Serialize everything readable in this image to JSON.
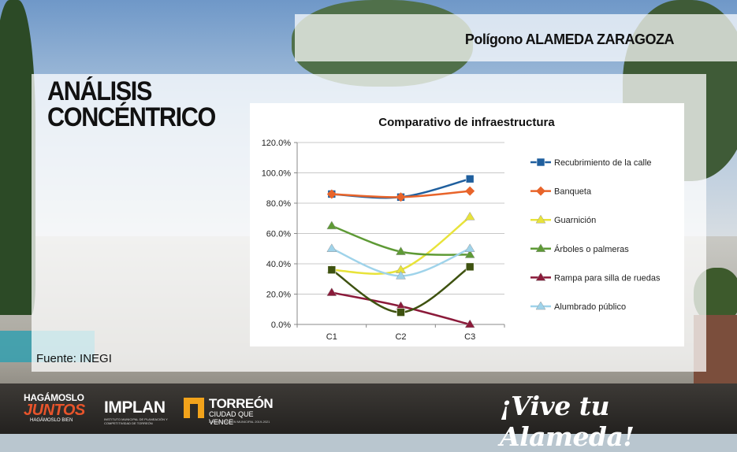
{
  "header": {
    "polygon_title": "Polígono ALAMEDA ZARAGOZA"
  },
  "heading": {
    "line1": "ANÁLISIS",
    "line2": "CONCÉNTRICO"
  },
  "source": "Fuente: INEGI",
  "footer": {
    "hagamoslo_top": "HAGÁMOSLO",
    "hagamoslo_main": "JUNTOS",
    "hagamoslo_bottom": "HAGÁMOSLO BIEN",
    "implan_name": "IMPLAN",
    "implan_sub": "INSTITUTO MUNICIPAL DE PLANEACIÓN Y COMPETITIVIDAD DE TORREÓN",
    "torreon_name": "TORREÓN",
    "torreon_slogan": "CIUDAD QUE VENCE",
    "torreon_admin": "ADMINISTRACIÓN MUNICIPAL 2019-2021",
    "slogan": "¡Vive tu Alameda!"
  },
  "chart_data": {
    "type": "line",
    "title": "Comparativo de infraestructura",
    "xlabel": "",
    "ylabel": "",
    "categories": [
      "C1",
      "C2",
      "C3"
    ],
    "ylim": [
      0,
      1.2
    ],
    "yticks": [
      "0.0%",
      "20.0%",
      "40.0%",
      "60.0%",
      "80.0%",
      "100.0%",
      "120.0%"
    ],
    "grid": true,
    "legend_position": "right",
    "series": [
      {
        "name": "Recubrimiento de la calle",
        "values": [
          0.86,
          0.84,
          0.96
        ],
        "color": "#1f5f9e",
        "marker": "square"
      },
      {
        "name": "Banqueta",
        "values": [
          0.86,
          0.84,
          0.88
        ],
        "color": "#e8642a",
        "marker": "diamond"
      },
      {
        "name": "Guarnición",
        "values": [
          0.36,
          0.36,
          0.71
        ],
        "color": "#e8e33a",
        "marker": "triangle"
      },
      {
        "name": "Árboles o palmeras",
        "values": [
          0.65,
          0.48,
          0.46
        ],
        "color": "#5e9a35",
        "marker": "triangle"
      },
      {
        "name": "Rampa para silla de ruedas",
        "values": [
          0.21,
          0.12,
          0.0
        ],
        "color": "#8b1a3a",
        "marker": "triangle"
      },
      {
        "name": "Alumbrado público",
        "values": [
          0.5,
          0.32,
          0.5
        ],
        "color": "#9fd3ea",
        "marker": "triangle"
      },
      {
        "name": "",
        "values": [
          0.36,
          0.08,
          0.38
        ],
        "color": "#3e5210",
        "marker": "square"
      }
    ]
  }
}
